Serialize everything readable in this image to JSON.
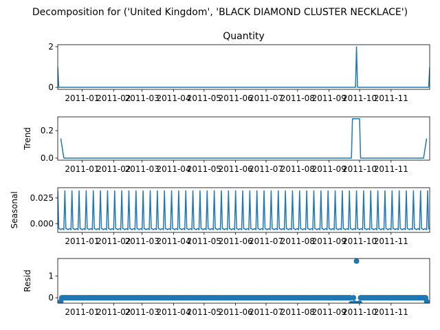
{
  "figure": {
    "suptitle": "Decomposition for ('United Kingdom', 'BLACK DIAMOND CLUSTER NECKLACE')"
  },
  "chart_data": [
    {
      "type": "line",
      "title": "Quantity",
      "ylabel": "",
      "ylim": [
        -0.1,
        2.1
      ],
      "yticks": [
        0,
        2
      ],
      "x_range": [
        "2010-12-08",
        "2011-12-09"
      ],
      "xtick_labels": [
        "2011-01",
        "2011-02",
        "2011-03",
        "2011-04",
        "2011-05",
        "2011-06",
        "2011-07",
        "2011-08",
        "2011-09",
        "2011-10",
        "2011-11"
      ],
      "series": [
        {
          "x": [
            "2010-12-08",
            "2010-12-09",
            "2011-09-27",
            "2011-09-28",
            "2011-09-29",
            "2011-12-08",
            "2011-12-09"
          ],
          "values": [
            1,
            0,
            0,
            2,
            0,
            0,
            1
          ]
        }
      ]
    },
    {
      "type": "line",
      "title": "",
      "ylabel": "Trend",
      "ylim": [
        -0.015,
        0.3
      ],
      "yticks": [
        0.0,
        0.2
      ],
      "ytick_labels": [
        "0.0",
        "0.2"
      ],
      "series": [
        {
          "x": [
            "2010-12-11",
            "2010-12-14",
            "2011-09-23",
            "2011-09-24",
            "2011-10-01",
            "2011-10-02",
            "2011-12-03",
            "2011-12-06"
          ],
          "values": [
            0.143,
            0,
            0,
            0.286,
            0.286,
            0,
            0,
            0.143
          ]
        }
      ]
    },
    {
      "type": "line",
      "title": "",
      "ylabel": "Seasonal",
      "ylim": [
        -0.0085,
        0.035
      ],
      "yticks": [
        0.0,
        0.025
      ],
      "ytick_labels": [
        "0.000",
        "0.025"
      ],
      "period_days": 7,
      "pattern": [
        0.032,
        -0.005,
        -0.005,
        -0.006,
        -0.005,
        -0.005,
        -0.006
      ]
    },
    {
      "type": "scatter",
      "title": "",
      "ylabel": "Resid",
      "ylim": [
        -0.25,
        1.8
      ],
      "yticks": [
        0,
        1
      ],
      "baseline": 0,
      "points": [
        {
          "x": "2010-12-11",
          "y": -0.17
        },
        {
          "x": "2011-09-23",
          "y": -0.27
        },
        {
          "x": "2011-09-24",
          "y": -0.29
        },
        {
          "x": "2011-09-26",
          "y": -0.25
        },
        {
          "x": "2011-09-27",
          "y": -0.28
        },
        {
          "x": "2011-09-28",
          "y": 1.68
        },
        {
          "x": "2011-09-29",
          "y": -0.27
        },
        {
          "x": "2011-09-30",
          "y": -0.3
        },
        {
          "x": "2011-10-01",
          "y": -0.25
        },
        {
          "x": "2011-12-06",
          "y": -0.17
        }
      ]
    }
  ],
  "colors": {
    "series": "#1f77b4",
    "axis": "#000000"
  }
}
